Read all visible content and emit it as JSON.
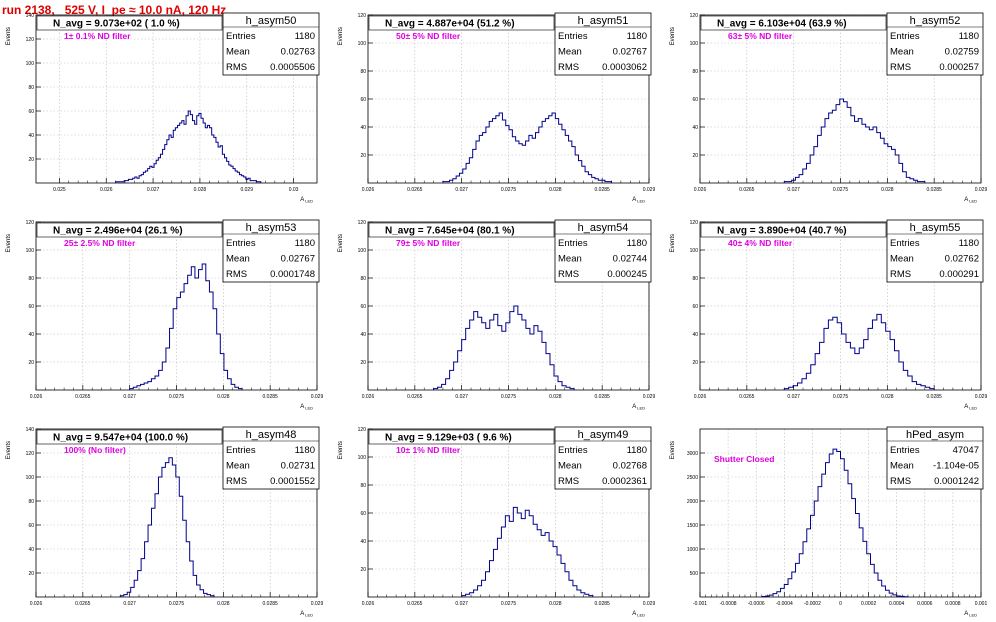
{
  "title": "run 2138,   525 V, I_pe ≈ 10.0 nA, 120 Hz",
  "chart_data": [
    {
      "type": "histogram",
      "name": "h_asym50",
      "annotation": "N_avg = 9.073e+02 ( 1.0 %)",
      "label": "1± 0.1% ND filter",
      "stats": {
        "entries": "1180",
        "mean": "0.02763",
        "rms": "0.0005506"
      },
      "xlim": [
        0.0245,
        0.0305
      ],
      "ylim": [
        0,
        140
      ],
      "xticks": [
        "0.025",
        "0.026",
        "0.027",
        "0.028",
        "0.029",
        "0.03"
      ],
      "yticks": [
        "20",
        "40",
        "60",
        "80",
        "100",
        "120",
        "140"
      ],
      "xlabel": "A_{LED}",
      "ylabel": "Events",
      "bins": {
        "lo": 0.0262,
        "hi": 0.0293,
        "values": [
          1,
          1,
          1,
          1,
          2,
          2,
          3,
          3,
          4,
          5,
          4,
          6,
          7,
          9,
          10,
          12,
          14,
          13,
          16,
          19,
          21,
          24,
          28,
          32,
          36,
          40,
          38,
          44,
          46,
          48,
          50,
          52,
          49,
          56,
          60,
          57,
          52,
          49,
          56,
          58,
          54,
          50,
          46,
          48,
          46,
          40,
          38,
          34,
          30,
          31,
          24,
          21,
          18,
          15,
          14,
          12,
          10,
          9,
          7,
          6,
          5,
          3,
          4,
          2,
          2,
          2,
          1,
          1
        ]
      }
    },
    {
      "type": "histogram",
      "name": "h_asym51",
      "annotation": "N_avg = 4.887e+04 (51.2 %)",
      "label": "50± 5% ND filter",
      "stats": {
        "entries": "1180",
        "mean": "0.02767",
        "rms": "0.0003062"
      },
      "xlim": [
        0.026,
        0.029
      ],
      "ylim": [
        0,
        120
      ],
      "xticks": [
        "0.026",
        "0.0265",
        "0.027",
        "0.0275",
        "0.028",
        "0.0285",
        "0.029"
      ],
      "yticks": [
        "20",
        "40",
        "60",
        "80",
        "100",
        "120"
      ],
      "xlabel": "A_{LED}",
      "ylabel": "Events",
      "bins": {
        "lo": 0.0268,
        "hi": 0.0286,
        "values": [
          1,
          1,
          2,
          3,
          5,
          7,
          10,
          14,
          18,
          24,
          30,
          34,
          36,
          40,
          44,
          46,
          48,
          50,
          45,
          41,
          38,
          33,
          30,
          28,
          27,
          30,
          34,
          32,
          36,
          40,
          44,
          46,
          48,
          50,
          46,
          42,
          38,
          34,
          30,
          26,
          20,
          16,
          12,
          8,
          6,
          4,
          3,
          2,
          2,
          1,
          1
        ]
      }
    },
    {
      "type": "histogram",
      "name": "h_asym52",
      "annotation": "N_avg = 6.103e+04 (63.9 %)",
      "label": "63± 5% ND filter",
      "stats": {
        "entries": "1180",
        "mean": "0.02759",
        "rms": "0.000257"
      },
      "xlim": [
        0.026,
        0.029
      ],
      "ylim": [
        0,
        120
      ],
      "xticks": [
        "0.026",
        "0.0265",
        "0.027",
        "0.0275",
        "0.028",
        "0.0285",
        "0.029"
      ],
      "yticks": [
        "20",
        "40",
        "60",
        "80",
        "100",
        "120"
      ],
      "xlabel": "A_{LED}",
      "ylabel": "Events",
      "bins": {
        "lo": 0.0269,
        "hi": 0.0284,
        "values": [
          1,
          1,
          2,
          4,
          6,
          10,
          14,
          20,
          26,
          34,
          40,
          46,
          50,
          52,
          56,
          60,
          58,
          54,
          48,
          44,
          46,
          42,
          40,
          38,
          40,
          36,
          32,
          28,
          26,
          24,
          20,
          14,
          8,
          4,
          3,
          2,
          1,
          1
        ]
      }
    },
    {
      "type": "histogram",
      "name": "h_asym53",
      "annotation": "N_avg = 2.496e+04 (26.1 %)",
      "label": "25± 2.5% ND filter",
      "stats": {
        "entries": "1180",
        "mean": "0.02767",
        "rms": "0.0001748"
      },
      "xlim": [
        0.026,
        0.029
      ],
      "ylim": [
        0,
        120
      ],
      "xticks": [
        "0.026",
        "0.0265",
        "0.027",
        "0.0275",
        "0.028",
        "0.0285",
        "0.029"
      ],
      "yticks": [
        "20",
        "40",
        "60",
        "80",
        "100",
        "120"
      ],
      "xlabel": "A_{LED}",
      "ylabel": "Events",
      "bins": {
        "lo": 0.027,
        "hi": 0.0282,
        "values": [
          1,
          2,
          3,
          4,
          5,
          6,
          8,
          10,
          14,
          20,
          30,
          44,
          58,
          66,
          70,
          76,
          82,
          88,
          80,
          86,
          90,
          78,
          70,
          58,
          40,
          26,
          14,
          8,
          4,
          2,
          1
        ]
      }
    },
    {
      "type": "histogram",
      "name": "h_asym54",
      "annotation": "N_avg = 7.645e+04 (80.1 %)",
      "label": "79± 5% ND filter",
      "stats": {
        "entries": "1180",
        "mean": "0.02744",
        "rms": "0.000245"
      },
      "xlim": [
        0.026,
        0.029
      ],
      "ylim": [
        0,
        120
      ],
      "xticks": [
        "0.026",
        "0.0265",
        "0.027",
        "0.0275",
        "0.028",
        "0.0285",
        "0.029"
      ],
      "yticks": [
        "20",
        "40",
        "60",
        "80",
        "100",
        "120"
      ],
      "xlabel": "A_{LED}",
      "ylabel": "Events",
      "bins": {
        "lo": 0.0267,
        "hi": 0.0282,
        "values": [
          1,
          2,
          4,
          8,
          14,
          20,
          28,
          36,
          44,
          50,
          56,
          52,
          48,
          44,
          50,
          54,
          46,
          42,
          48,
          56,
          60,
          54,
          50,
          44,
          40,
          46,
          42,
          34,
          26,
          18,
          10,
          6,
          3,
          2,
          1
        ]
      }
    },
    {
      "type": "histogram",
      "name": "h_asym55",
      "annotation": "N_avg = 3.890e+04 (40.7 %)",
      "label": "40± 4% ND filter",
      "stats": {
        "entries": "1180",
        "mean": "0.02762",
        "rms": "0.000291"
      },
      "xlim": [
        0.026,
        0.029
      ],
      "ylim": [
        0,
        120
      ],
      "xticks": [
        "0.026",
        "0.0265",
        "0.027",
        "0.0275",
        "0.028",
        "0.0285",
        "0.029"
      ],
      "yticks": [
        "20",
        "40",
        "60",
        "80",
        "100",
        "120"
      ],
      "xlabel": "A_{LED}",
      "ylabel": "Events",
      "bins": {
        "lo": 0.0269,
        "hi": 0.0285,
        "values": [
          1,
          2,
          3,
          5,
          8,
          12,
          18,
          26,
          34,
          44,
          50,
          52,
          48,
          40,
          34,
          30,
          26,
          30,
          36,
          44,
          50,
          54,
          48,
          42,
          36,
          28,
          20,
          14,
          10,
          6,
          4,
          3,
          2,
          1
        ]
      }
    },
    {
      "type": "histogram",
      "name": "h_asym48",
      "annotation": "N_avg = 9.547e+04 (100.0 %)",
      "label": "100% (No filter)",
      "stats": {
        "entries": "1180",
        "mean": "0.02731",
        "rms": "0.0001552"
      },
      "xlim": [
        0.026,
        0.029
      ],
      "ylim": [
        0,
        140
      ],
      "xticks": [
        "0.026",
        "0.0265",
        "0.027",
        "0.0275",
        "0.028",
        "0.0285",
        "0.029"
      ],
      "yticks": [
        "20",
        "40",
        "60",
        "80",
        "100",
        "120",
        "140"
      ],
      "xlabel": "A_{LED}",
      "ylabel": "Events",
      "bins": {
        "lo": 0.0269,
        "hi": 0.0279,
        "values": [
          1,
          2,
          4,
          8,
          14,
          22,
          32,
          46,
          60,
          74,
          86,
          100,
          108,
          112,
          116,
          110,
          100,
          84,
          64,
          46,
          30,
          18,
          10,
          6,
          3,
          2,
          1
        ]
      }
    },
    {
      "type": "histogram",
      "name": "h_asym49",
      "annotation": "N_avg = 9.129e+03 ( 9.6 %)",
      "label": "10± 1% ND filter",
      "stats": {
        "entries": "1180",
        "mean": "0.02768",
        "rms": "0.0002361"
      },
      "xlim": [
        0.026,
        0.029
      ],
      "ylim": [
        0,
        120
      ],
      "xticks": [
        "0.026",
        "0.0265",
        "0.027",
        "0.0275",
        "0.028",
        "0.0285",
        "0.029"
      ],
      "yticks": [
        "20",
        "40",
        "60",
        "80",
        "100",
        "120"
      ],
      "xlabel": "A_{LED}",
      "ylabel": "Events",
      "bins": {
        "lo": 0.027,
        "hi": 0.0284,
        "values": [
          1,
          2,
          3,
          5,
          8,
          12,
          18,
          26,
          34,
          42,
          50,
          58,
          54,
          64,
          60,
          56,
          62,
          58,
          52,
          48,
          44,
          46,
          40,
          36,
          30,
          24,
          18,
          12,
          8,
          5,
          3,
          2,
          1
        ]
      }
    },
    {
      "type": "histogram",
      "name": "hPed_asym",
      "annotation": "",
      "label": "Shutter Closed",
      "stats": {
        "entries": "47047",
        "mean": "-1.104e-05",
        "rms": "0.0001242"
      },
      "xlim": [
        -0.001,
        0.001
      ],
      "ylim": [
        0,
        3500
      ],
      "xticks": [
        "-0.001",
        "-0.0008",
        "-0.0006",
        "-0.0004",
        "-0.0002",
        "0",
        "0.0002",
        "0.0004",
        "0.0006",
        "0.0008",
        "0.001"
      ],
      "yticks": [
        "500",
        "1000",
        "1500",
        "2000",
        "2500",
        "3000"
      ],
      "xlabel": "A_{LED}",
      "ylabel": "Events",
      "bins": {
        "lo": -0.00056,
        "hi": 0.00048,
        "values": [
          10,
          20,
          40,
          70,
          110,
          180,
          260,
          380,
          520,
          700,
          900,
          1150,
          1420,
          1700,
          2000,
          2300,
          2560,
          2800,
          2980,
          3080,
          3030,
          2880,
          2640,
          2360,
          2050,
          1740,
          1440,
          1160,
          900,
          680,
          500,
          350,
          230,
          140,
          80,
          44,
          22,
          12,
          6
        ]
      }
    }
  ]
}
